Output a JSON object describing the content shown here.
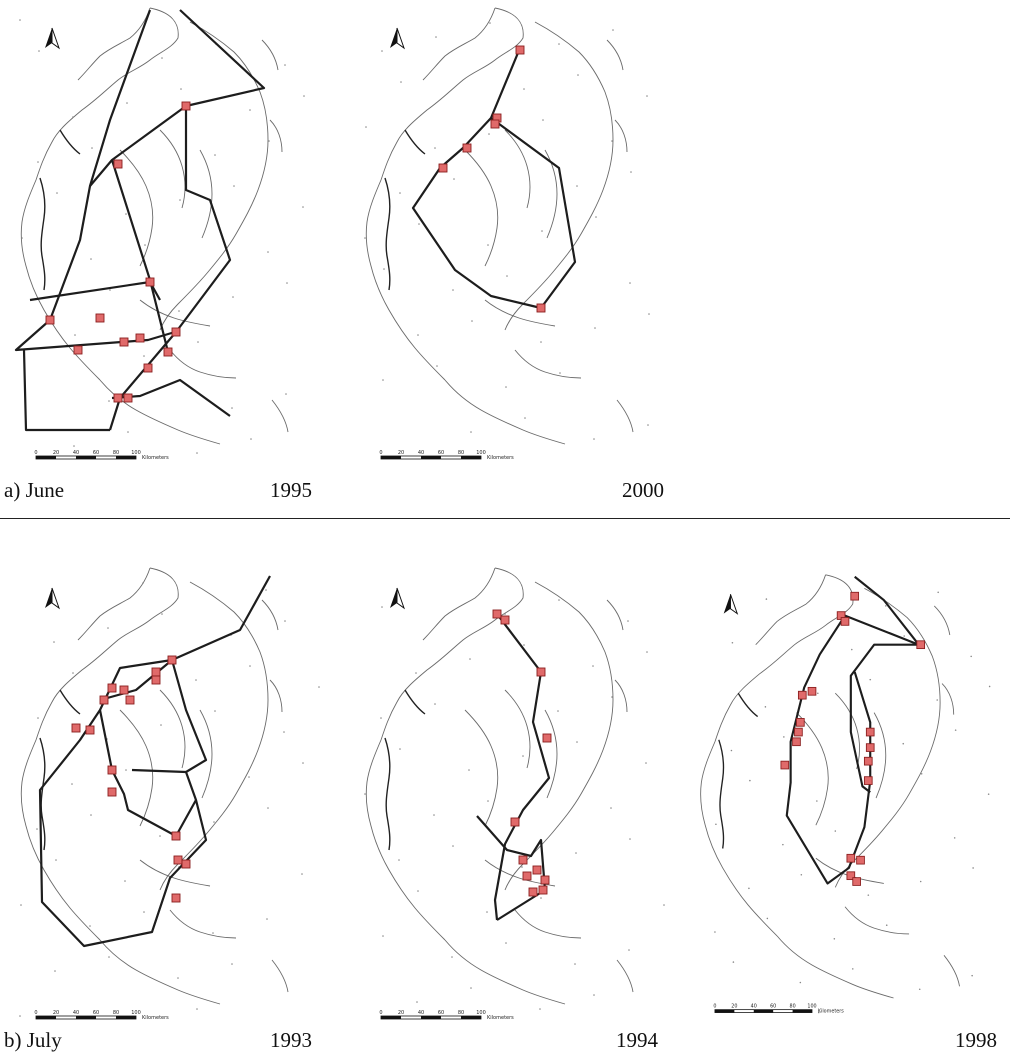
{
  "figure": {
    "panel_a": {
      "label": "a) June",
      "maps": [
        {
          "year": "1995"
        },
        {
          "year": "2000"
        }
      ]
    },
    "panel_b": {
      "label": "b) July",
      "maps": [
        {
          "year": "1993"
        },
        {
          "year": "1994"
        },
        {
          "year": "1998"
        }
      ]
    }
  },
  "map_common": {
    "north_arrow_icon": "north-arrow-icon",
    "scale_bar": {
      "ticks": [
        "0",
        "20",
        "40",
        "60",
        "80",
        "100"
      ],
      "unit": "Kilometers"
    }
  },
  "colors": {
    "station_fill": "#e06a6a",
    "station_stroke": "#8a1e1e",
    "track": "#1d1d1d",
    "coastline": "#6a6a6a"
  }
}
